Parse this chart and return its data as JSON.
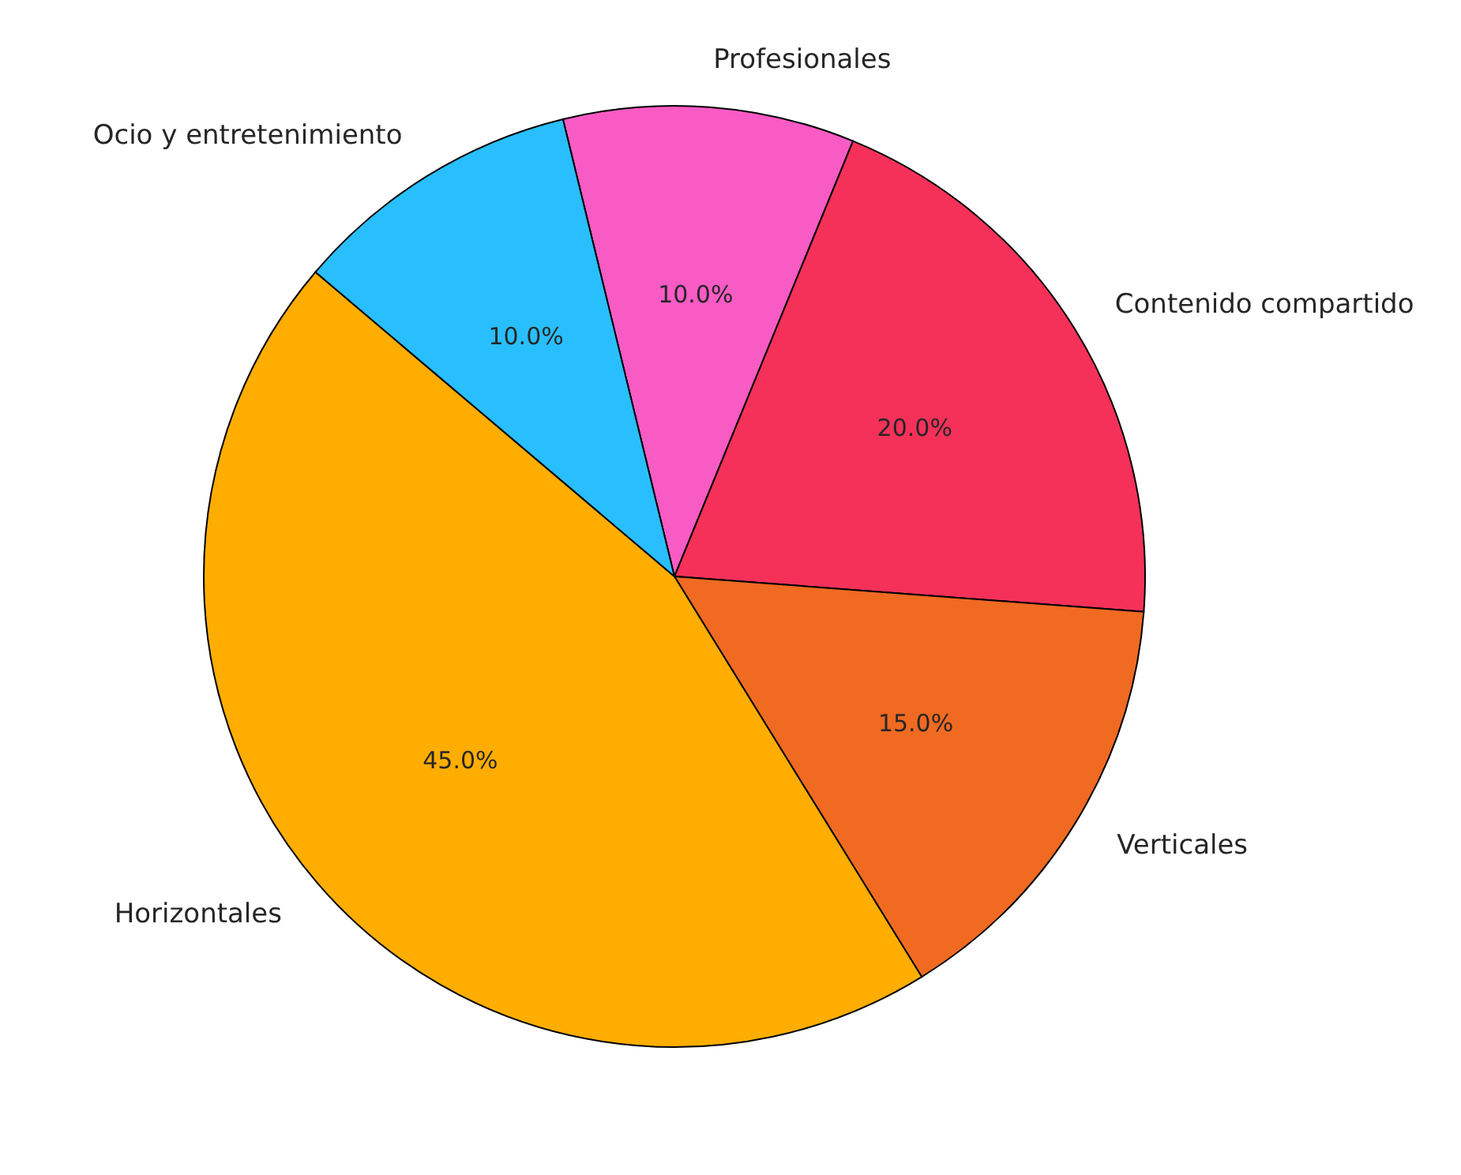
{
  "chart_data": {
    "type": "pie",
    "categories": [
      "Profesionales",
      "Contenido compartido",
      "Verticales",
      "Horizontales",
      "Ocio y entretenimiento"
    ],
    "values": [
      10,
      20,
      15,
      45,
      10
    ],
    "colors": [
      "#f95bc5",
      "#f5315a",
      "#f06a22",
      "#ffad00",
      "#29bfff"
    ],
    "value_labels": [
      "10.0%",
      "20.0%",
      "15.0%",
      "45.0%",
      "10.0%"
    ]
  }
}
